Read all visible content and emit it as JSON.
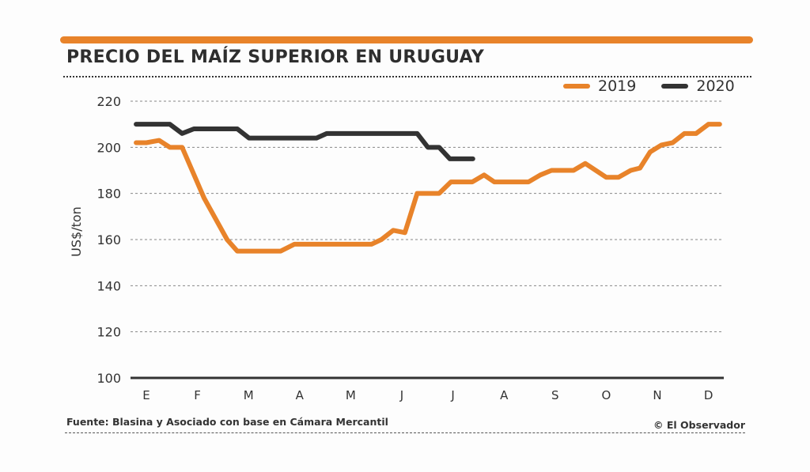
{
  "header": {
    "title": "PRECIO DEL MAÍZ SUPERIOR EN URUGUAY"
  },
  "footer": {
    "source": "Fuente: Blasina y Asociado con base en Cámara Mercantil",
    "credit": "© El Observador"
  },
  "colors": {
    "accent": "#e8832a",
    "series_2019": "#e8832a",
    "series_2020": "#333333",
    "grid": "#888888",
    "axis": "#333333"
  },
  "chart_data": {
    "type": "line",
    "title": "PRECIO DEL MAÍZ SUPERIOR EN URUGUAY",
    "xlabel": "",
    "ylabel": "US$/ton",
    "ylim": [
      100,
      220
    ],
    "yticks": [
      100,
      120,
      140,
      160,
      180,
      200,
      220
    ],
    "xlim": [
      -0.2,
      11.2
    ],
    "categories": [
      "E",
      "F",
      "M",
      "A",
      "M",
      "J",
      "J",
      "A",
      "S",
      "O",
      "N",
      "D"
    ],
    "grid": true,
    "legend_position": "top-right",
    "series": [
      {
        "name": "2019",
        "points": [
          [
            -0.2,
            202
          ],
          [
            0.0,
            202
          ],
          [
            0.25,
            203
          ],
          [
            0.46,
            200
          ],
          [
            0.7,
            200
          ],
          [
            1.13,
            178
          ],
          [
            1.58,
            160
          ],
          [
            1.78,
            155
          ],
          [
            2.25,
            155
          ],
          [
            2.63,
            155
          ],
          [
            2.9,
            158
          ],
          [
            3.48,
            158
          ],
          [
            4.41,
            158
          ],
          [
            4.6,
            160
          ],
          [
            4.83,
            164
          ],
          [
            5.06,
            163
          ],
          [
            5.3,
            180
          ],
          [
            5.73,
            180
          ],
          [
            5.96,
            185
          ],
          [
            6.38,
            185
          ],
          [
            6.61,
            188
          ],
          [
            6.81,
            185
          ],
          [
            7.48,
            185
          ],
          [
            7.71,
            188
          ],
          [
            7.93,
            190
          ],
          [
            8.36,
            190
          ],
          [
            8.59,
            193
          ],
          [
            9.0,
            187
          ],
          [
            9.24,
            187
          ],
          [
            9.48,
            190
          ],
          [
            9.66,
            191
          ],
          [
            9.86,
            198
          ],
          [
            10.08,
            201
          ],
          [
            10.3,
            202
          ],
          [
            10.53,
            206
          ],
          [
            10.76,
            206
          ],
          [
            11.0,
            210
          ],
          [
            11.22,
            210
          ]
        ]
      },
      {
        "name": "2020",
        "points": [
          [
            -0.2,
            210
          ],
          [
            0.46,
            210
          ],
          [
            0.7,
            206
          ],
          [
            0.93,
            208
          ],
          [
            1.78,
            208
          ],
          [
            2.01,
            204
          ],
          [
            3.33,
            204
          ],
          [
            3.53,
            206
          ],
          [
            5.3,
            206
          ],
          [
            5.51,
            200
          ],
          [
            5.73,
            200
          ],
          [
            5.94,
            195
          ],
          [
            6.39,
            195
          ]
        ]
      }
    ]
  }
}
